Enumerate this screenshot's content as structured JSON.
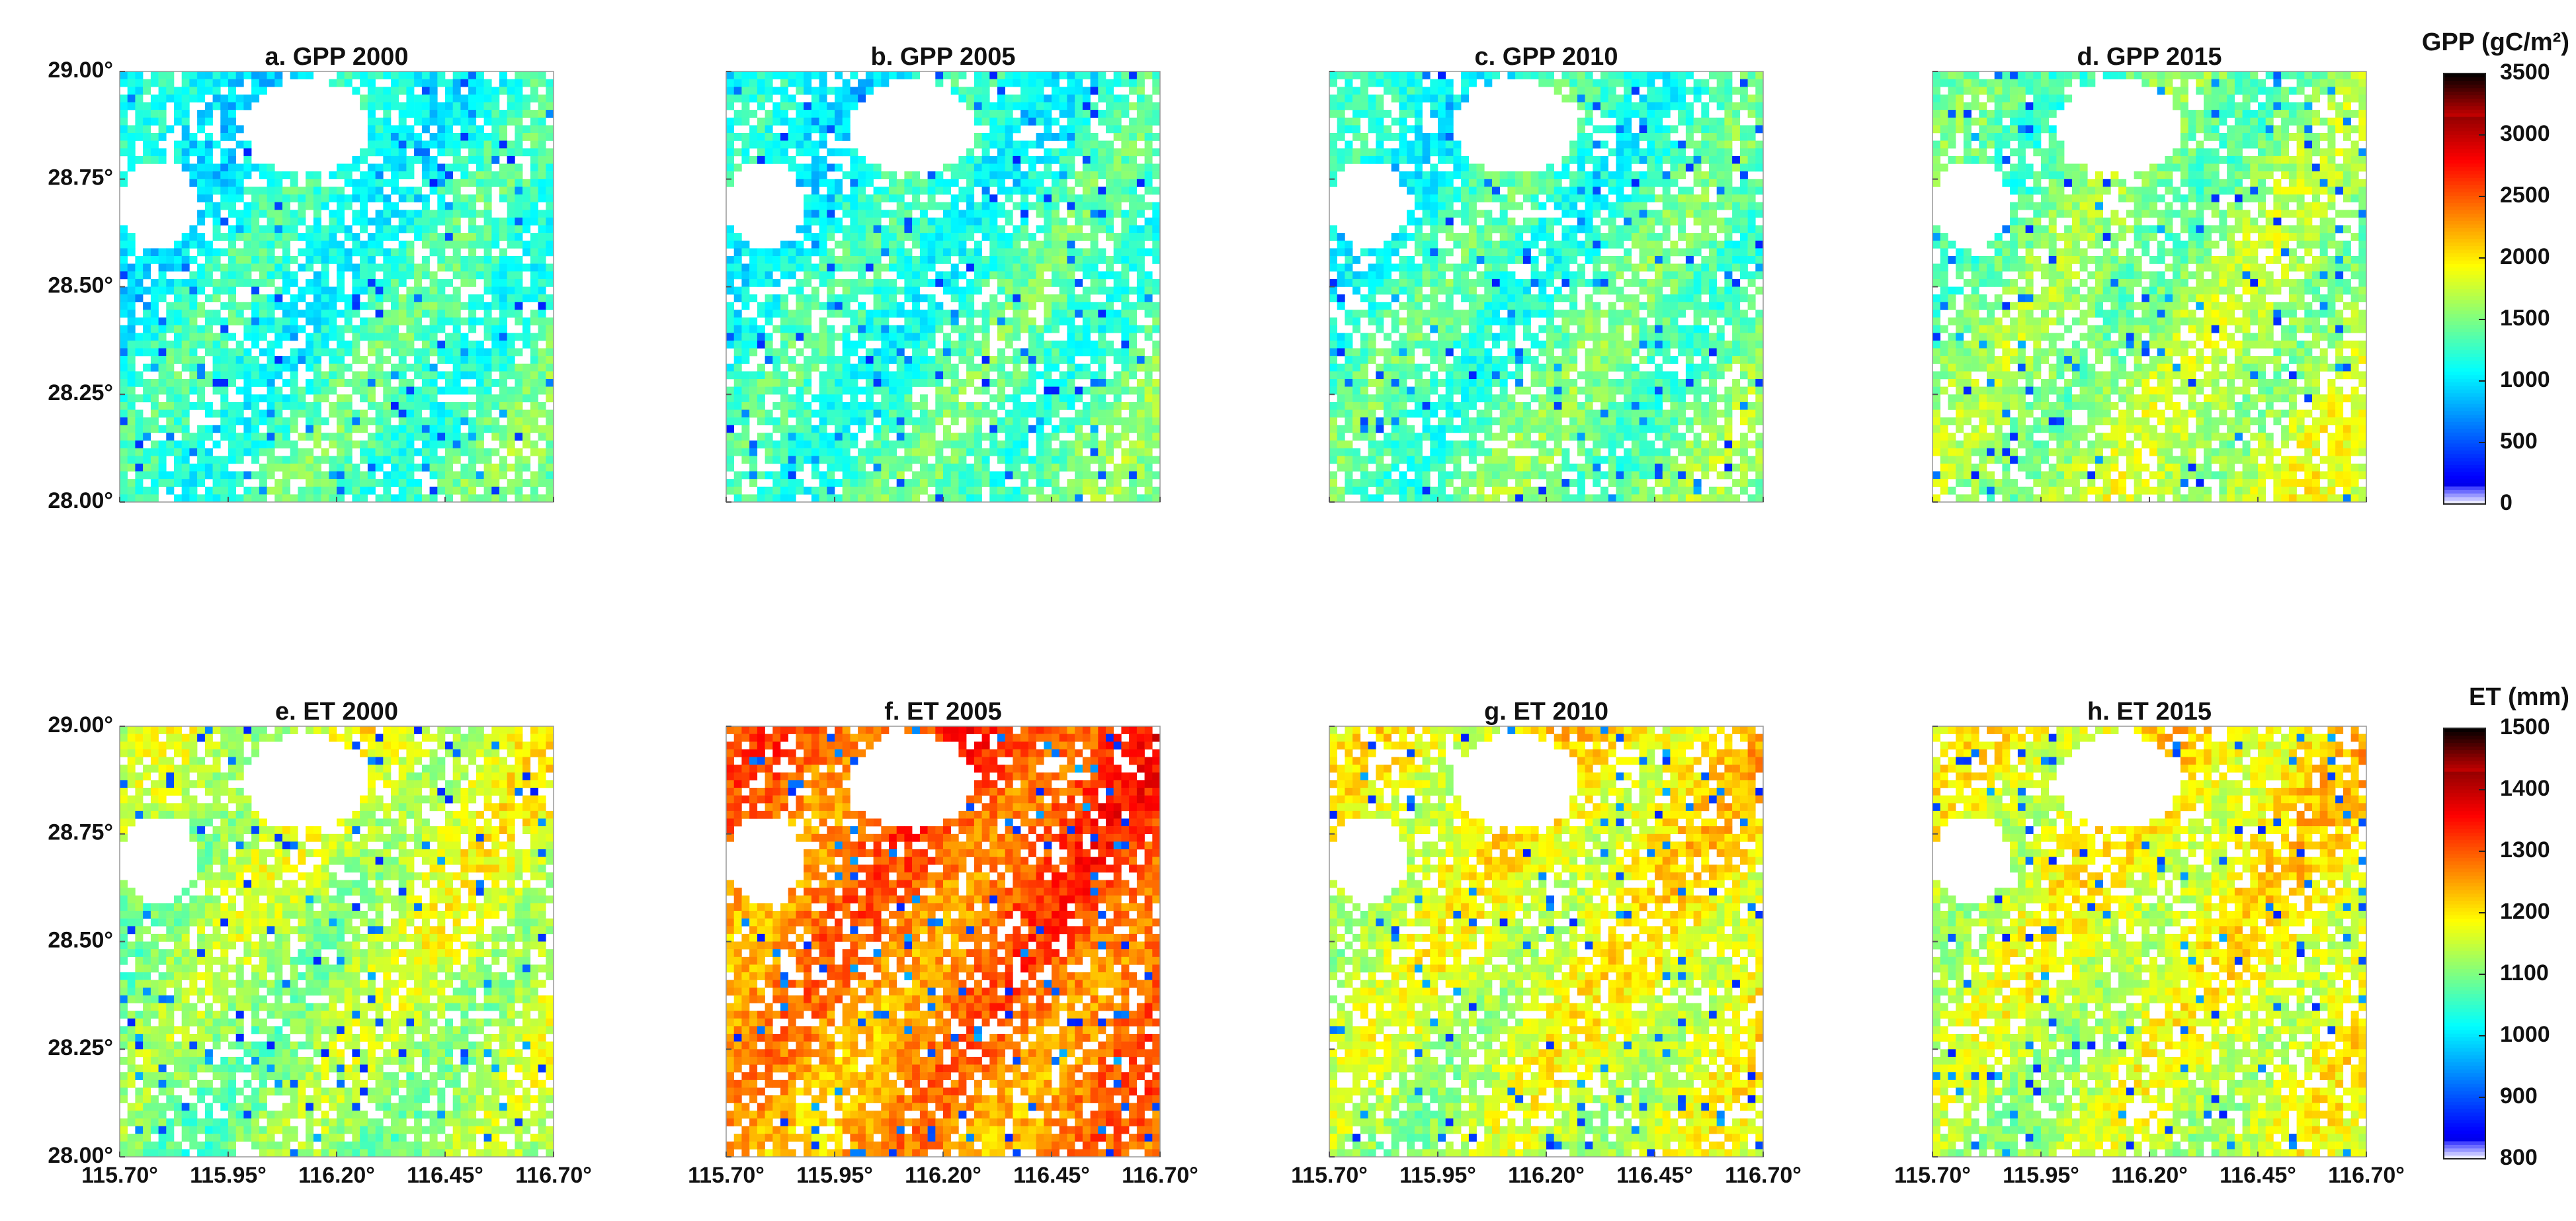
{
  "maps": {
    "xlim": [
      115.7,
      116.7
    ],
    "ylim": [
      28,
      29
    ],
    "xticks": [
      {
        "value": 115.7,
        "label": "115.70°"
      },
      {
        "value": 115.95,
        "label": "115.95°"
      },
      {
        "value": 116.2,
        "label": "116.20°"
      },
      {
        "value": 116.45,
        "label": "116.45°"
      },
      {
        "value": 116.7,
        "label": "116.70°"
      }
    ],
    "yticks": [
      {
        "value": 28,
        "label": "28.00°"
      },
      {
        "value": 28.25,
        "label": "28.25°"
      },
      {
        "value": 28.5,
        "label": "28.50°"
      },
      {
        "value": 28.75,
        "label": "28.75°"
      },
      {
        "value": 29,
        "label": "29.00°"
      }
    ]
  },
  "rows": [
    {
      "panels": [
        "a. GPP 2000",
        "b. GPP 2005",
        "c. GPP 2010",
        "d. GPP 2015"
      ],
      "colorbar": {
        "title": "GPP (gC/m²)",
        "lim": [
          0,
          3500
        ],
        "ticks": [
          0,
          500,
          1000,
          1500,
          2000,
          2500,
          3000,
          3500
        ]
      }
    },
    {
      "panels": [
        "e. ET 2000",
        "f. ET 2005",
        "g. ET 2010",
        "h. ET 2015"
      ],
      "colorbar": {
        "title": "ET (mm)",
        "lim": [
          800,
          1500
        ],
        "ticks": [
          800,
          900,
          1000,
          1100,
          1200,
          1300,
          1400,
          1500
        ]
      }
    }
  ]
}
